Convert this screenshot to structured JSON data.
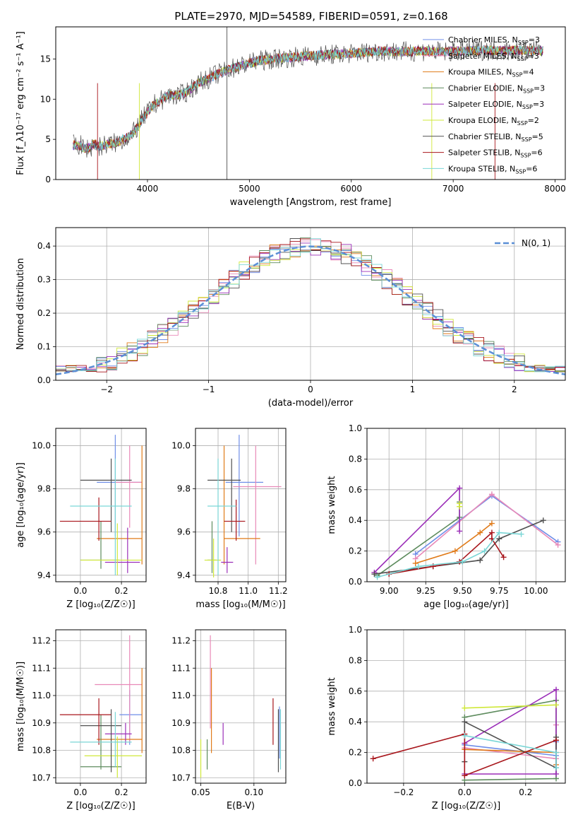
{
  "title": "PLATE=2970, MJD=54589, FIBERID=0591, z=0.168",
  "series": [
    {
      "label": "Chabrier MILES, N_SSP=3",
      "color": "#6f8ee8"
    },
    {
      "label": "Salpeter MILES, N_SSP=3",
      "color": "#e889b8"
    },
    {
      "label": "Kroupa MILES, N_SSP=4",
      "color": "#e07b1a"
    },
    {
      "label": "Chabrier ELODIE, N_SSP=3",
      "color": "#5e8c5e"
    },
    {
      "label": "Salpeter ELODIE, N_SSP=3",
      "color": "#9b2fb8"
    },
    {
      "label": "Kroupa ELODIE, N_SSP=2",
      "color": "#cfe838"
    },
    {
      "label": "Chabrier STELIB, N_SSP=5",
      "color": "#505050"
    },
    {
      "label": "Salpeter STELIB, N_SSP=6",
      "color": "#a8161c"
    },
    {
      "label": "Kroupa STELIB, N_SSP=6",
      "color": "#7ad6d6"
    }
  ],
  "chart_data": [
    {
      "id": "spectrum",
      "type": "line",
      "xlabel": "wavelength [Angstrom, rest frame]",
      "ylabel": "Flux [f_λ10⁻¹⁷ erg cm⁻² s⁻¹ A⁻¹]",
      "xlim": [
        3100,
        8100
      ],
      "ylim": [
        0,
        19
      ],
      "xticks": [
        4000,
        5000,
        6000,
        7000,
        8000
      ],
      "yticks": [
        0,
        5,
        10,
        15
      ],
      "legend": "upper right",
      "x": [
        3270,
        3400,
        3550,
        3700,
        3850,
        3950,
        4050,
        4200,
        4350,
        4500,
        4650,
        4800,
        4950,
        5100,
        5300,
        5500,
        5700,
        5900,
        6100,
        6300,
        6500,
        6700,
        6900,
        7100,
        7300,
        7500,
        7700,
        7880
      ],
      "y": [
        4.0,
        3.9,
        4.2,
        4.6,
        5.6,
        7.5,
        9.2,
        10.4,
        10.6,
        12.0,
        12.9,
        13.7,
        14.3,
        14.8,
        15.1,
        15.3,
        15.5,
        15.6,
        15.8,
        16.0,
        15.9,
        16.0,
        15.9,
        16.0,
        16.1,
        16.0,
        16.1,
        16.0
      ]
    },
    {
      "id": "residuals",
      "type": "line",
      "xlabel": "(data-model)/error",
      "ylabel": "Normed distribution",
      "xlim": [
        -2.5,
        2.5
      ],
      "ylim": [
        0,
        0.455
      ],
      "xticks": [
        -2,
        -1,
        0,
        1,
        2
      ],
      "yticks": [
        0.0,
        0.1,
        0.2,
        0.3,
        0.4
      ],
      "legend": "upper right",
      "legend_label": "N(0, 1)",
      "gaussian_color": "#5b8fd6",
      "grid": true
    },
    {
      "id": "age_vs_Z",
      "type": "scatter",
      "xlabel": "Z [log₁₀(Z/Z☉)]",
      "ylabel": "age [log₁₀(age/yr)]",
      "xlim": [
        -0.12,
        0.32
      ],
      "ylim": [
        9.37,
        10.08
      ],
      "xticks": [
        0.0,
        0.2
      ],
      "yticks": [
        9.4,
        9.6,
        9.8,
        10.0
      ],
      "grid": true,
      "points": [
        {
          "s": 0,
          "x": 0.17,
          "y": 9.83,
          "x0": 0.08,
          "x1": 0.3,
          "y0": 9.58,
          "y1": 10.05
        },
        {
          "s": 1,
          "x": 0.24,
          "y": 9.83,
          "x0": 0.17,
          "x1": 0.3,
          "y0": 9.62,
          "y1": 10.0
        },
        {
          "s": 2,
          "x": 0.3,
          "y": 9.57,
          "x0": 0.08,
          "x1": 0.3,
          "y0": 9.45,
          "y1": 10.0
        },
        {
          "s": 3,
          "x": 0.1,
          "y": 9.47,
          "x0": 0.0,
          "x1": 0.19,
          "y0": 9.43,
          "y1": 9.65
        },
        {
          "s": 4,
          "x": 0.23,
          "y": 9.46,
          "x0": 0.12,
          "x1": 0.29,
          "y0": 9.41,
          "y1": 9.62
        },
        {
          "s": 5,
          "x": 0.18,
          "y": 9.47,
          "x0": 0.0,
          "x1": 0.3,
          "y0": 9.4,
          "y1": 9.64
        },
        {
          "s": 6,
          "x": 0.15,
          "y": 9.84,
          "x0": 0.0,
          "x1": 0.25,
          "y0": 9.6,
          "y1": 9.94
        },
        {
          "s": 7,
          "x": 0.09,
          "y": 9.65,
          "x0": -0.1,
          "x1": 0.15,
          "y0": 9.56,
          "y1": 9.76
        },
        {
          "s": 8,
          "x": 0.17,
          "y": 9.72,
          "x0": -0.05,
          "x1": 0.25,
          "y0": 9.4,
          "y1": 9.94
        }
      ]
    },
    {
      "id": "age_vs_mass",
      "type": "scatter",
      "xlabel": "mass [log₁₀(M/M☉)]",
      "ylabel": "",
      "xlim": [
        10.65,
        11.25
      ],
      "ylim": [
        9.37,
        10.08
      ],
      "xticks": [
        10.8,
        11.0,
        11.2
      ],
      "yticks": [
        9.4,
        9.6,
        9.8,
        10.0
      ],
      "grid": true,
      "points": [
        {
          "s": 0,
          "x": 10.94,
          "y": 9.83,
          "x0": 10.85,
          "x1": 11.1,
          "y0": 9.58,
          "y1": 10.05
        },
        {
          "s": 1,
          "x": 11.05,
          "y": 9.81,
          "x0": 10.9,
          "x1": 11.22,
          "y0": 9.45,
          "y1": 10.0
        },
        {
          "s": 2,
          "x": 10.84,
          "y": 9.57,
          "x0": 10.84,
          "x1": 11.08,
          "y0": 9.45,
          "y1": 10.0
        },
        {
          "s": 3,
          "x": 10.76,
          "y": 9.47,
          "x0": 10.73,
          "x1": 10.79,
          "y0": 9.41,
          "y1": 9.65
        },
        {
          "s": 4,
          "x": 10.86,
          "y": 9.46,
          "x0": 10.82,
          "x1": 10.9,
          "y0": 9.41,
          "y1": 9.53
        },
        {
          "s": 5,
          "x": 10.77,
          "y": 9.47,
          "x0": 10.71,
          "x1": 10.82,
          "y0": 9.39,
          "y1": 9.57
        },
        {
          "s": 6,
          "x": 10.89,
          "y": 9.84,
          "x0": 10.73,
          "x1": 10.95,
          "y0": 9.6,
          "y1": 9.94
        },
        {
          "s": 7,
          "x": 10.92,
          "y": 9.65,
          "x0": 10.84,
          "x1": 10.98,
          "y0": 9.56,
          "y1": 9.75
        },
        {
          "s": 8,
          "x": 10.8,
          "y": 9.72,
          "x0": 10.73,
          "x1": 10.92,
          "y0": 9.4,
          "y1": 9.94
        }
      ]
    },
    {
      "id": "weight_vs_age",
      "type": "line",
      "xlabel": "age [log₁₀(age/yr)]",
      "ylabel": "mass weight",
      "xlim": [
        8.85,
        10.2
      ],
      "ylim": [
        0,
        1.0
      ],
      "xticks": [
        9.0,
        9.25,
        9.5,
        9.75,
        10.0
      ],
      "yticks": [
        0.0,
        0.2,
        0.4,
        0.6,
        0.8,
        1.0
      ],
      "grid": true,
      "lines": [
        {
          "s": 0,
          "x": [
            9.18,
            9.7,
            10.15
          ],
          "y": [
            0.18,
            0.56,
            0.26
          ]
        },
        {
          "s": 1,
          "x": [
            9.18,
            9.7,
            10.15
          ],
          "y": [
            0.15,
            0.57,
            0.24
          ]
        },
        {
          "s": 2,
          "x": [
            9.18,
            9.45,
            9.62,
            9.7
          ],
          "y": [
            0.12,
            0.2,
            0.32,
            0.38
          ]
        },
        {
          "s": 3,
          "x": [
            8.92,
            9.48,
            9.48
          ],
          "y": [
            0.04,
            0.42,
            0.52
          ]
        },
        {
          "s": 4,
          "x": [
            8.9,
            9.48,
            9.48
          ],
          "y": [
            0.06,
            0.61,
            0.33
          ]
        },
        {
          "s": 5,
          "x": [
            9.48,
            9.48
          ],
          "y": [
            0.49,
            0.51
          ]
        },
        {
          "s": 6,
          "x": [
            8.9,
            9.3,
            9.62,
            9.75,
            10.05
          ],
          "y": [
            0.05,
            0.1,
            0.14,
            0.28,
            0.4
          ]
        },
        {
          "s": 7,
          "x": [
            9.0,
            9.3,
            9.48,
            9.7,
            9.7,
            9.78
          ],
          "y": [
            0.05,
            0.1,
            0.13,
            0.32,
            0.28,
            0.16
          ]
        },
        {
          "s": 8,
          "x": [
            8.92,
            9.2,
            9.5,
            9.65,
            9.75,
            9.9
          ],
          "y": [
            0.03,
            0.1,
            0.13,
            0.2,
            0.32,
            0.31
          ]
        }
      ]
    },
    {
      "id": "mass_vs_Z",
      "type": "scatter",
      "xlabel": "Z [log₁₀(Z/Z☉)]",
      "ylabel": "mass [log₁₀(M/M☉)]",
      "xlim": [
        -0.12,
        0.32
      ],
      "ylim": [
        10.68,
        11.24
      ],
      "xticks": [
        0.0,
        0.2
      ],
      "yticks": [
        10.7,
        10.8,
        10.9,
        11.0,
        11.1,
        11.2
      ],
      "grid": true,
      "points": [
        {
          "s": 0,
          "x": 0.24,
          "y": 10.93,
          "x0": 0.19,
          "x1": 0.3,
          "y0": 10.82,
          "y1": 11.02
        },
        {
          "s": 1,
          "x": 0.24,
          "y": 11.04,
          "x0": 0.07,
          "x1": 0.3,
          "y0": 10.83,
          "y1": 11.22
        },
        {
          "s": 2,
          "x": 0.3,
          "y": 10.84,
          "x0": 0.08,
          "x1": 0.3,
          "y0": 10.79,
          "y1": 11.1
        },
        {
          "s": 3,
          "x": 0.1,
          "y": 10.74,
          "x0": 0.0,
          "x1": 0.2,
          "y0": 10.73,
          "y1": 10.93
        },
        {
          "s": 4,
          "x": 0.22,
          "y": 10.86,
          "x0": 0.12,
          "x1": 0.25,
          "y0": 10.82,
          "y1": 10.9
        },
        {
          "s": 5,
          "x": 0.18,
          "y": 10.78,
          "x0": 0.02,
          "x1": 0.3,
          "y0": 10.7,
          "y1": 10.85
        },
        {
          "s": 6,
          "x": 0.15,
          "y": 10.89,
          "x0": 0.0,
          "x1": 0.2,
          "y0": 10.72,
          "y1": 10.95
        },
        {
          "s": 7,
          "x": 0.09,
          "y": 10.93,
          "x0": -0.1,
          "x1": 0.15,
          "y0": 10.82,
          "y1": 10.99
        },
        {
          "s": 8,
          "x": 0.17,
          "y": 10.83,
          "x0": -0.05,
          "x1": 0.25,
          "y0": 10.74,
          "y1": 10.94
        }
      ]
    },
    {
      "id": "mass_vs_EBV",
      "type": "scatter",
      "xlabel": "E(B-V)",
      "ylabel": "",
      "xlim": [
        0.045,
        0.13
      ],
      "ylim": [
        10.68,
        11.24
      ],
      "xticks": [
        0.05,
        0.1
      ],
      "yticks": [
        10.7,
        10.8,
        10.9,
        11.0,
        11.1,
        11.2
      ],
      "grid": true,
      "points": [
        {
          "s": 0,
          "x": 0.124,
          "y": 10.86,
          "y0": 10.77,
          "y1": 10.96
        },
        {
          "s": 1,
          "x": 0.059,
          "y": 11.05,
          "y0": 10.88,
          "y1": 11.22
        },
        {
          "s": 2,
          "x": 0.06,
          "y": 10.94,
          "y0": 10.79,
          "y1": 11.1
        },
        {
          "s": 3,
          "x": 0.056,
          "y": 10.79,
          "y0": 10.73,
          "y1": 10.84
        },
        {
          "s": 4,
          "x": 0.071,
          "y": 10.86,
          "y0": 10.82,
          "y1": 10.9
        },
        {
          "s": 5,
          "x": 0.05,
          "y": 10.78,
          "y0": 10.7,
          "y1": 10.84
        },
        {
          "s": 6,
          "x": 0.123,
          "y": 10.84,
          "y0": 10.72,
          "y1": 10.95
        },
        {
          "s": 7,
          "x": 0.118,
          "y": 10.9,
          "y0": 10.82,
          "y1": 10.99
        },
        {
          "s": 8,
          "x": 0.125,
          "y": 10.83,
          "y0": 10.73,
          "y1": 10.95
        }
      ]
    },
    {
      "id": "weight_vs_Z",
      "type": "line",
      "xlabel": "Z [log₁₀(Z/Z☉)]",
      "ylabel": "mass weight",
      "xlim": [
        -0.32,
        0.33
      ],
      "ylim": [
        0,
        1.0
      ],
      "xticks": [
        -0.2,
        0.0,
        0.2
      ],
      "yticks": [
        0.0,
        0.2,
        0.4,
        0.6,
        0.8,
        1.0
      ],
      "grid": true,
      "lines": [
        {
          "s": 0,
          "x": [
            0.0,
            0.3,
            0.3
          ],
          "y": [
            0.25,
            0.18,
            0.27
          ]
        },
        {
          "s": 1,
          "x": [
            0.0,
            0.3,
            0.3
          ],
          "y": [
            0.23,
            0.16,
            0.38
          ]
        },
        {
          "s": 2,
          "x": [
            0.0,
            0.3,
            0.3
          ],
          "y": [
            0.22,
            0.2,
            0.12
          ]
        },
        {
          "s": 3,
          "x": [
            0.0,
            0.3,
            0.3,
            0.0
          ],
          "y": [
            0.43,
            0.54,
            0.03,
            0.02
          ]
        },
        {
          "s": 4,
          "x": [
            0.0,
            0.3,
            0.3,
            0.0
          ],
          "y": [
            0.26,
            0.61,
            0.06,
            0.06
          ]
        },
        {
          "s": 5,
          "x": [
            0.0,
            0.3
          ],
          "y": [
            0.49,
            0.51
          ]
        },
        {
          "s": 6,
          "x": [
            0.0,
            0.0,
            0.3,
            0.3
          ],
          "y": [
            0.14,
            0.4,
            0.1,
            0.3
          ]
        },
        {
          "s": 7,
          "x": [
            -0.3,
            0.0,
            0.0,
            0.3
          ],
          "y": [
            0.16,
            0.32,
            0.05,
            0.28
          ]
        },
        {
          "s": 8,
          "x": [
            0.0,
            0.3,
            0.3
          ],
          "y": [
            0.31,
            0.2,
            0.1
          ]
        }
      ]
    }
  ]
}
